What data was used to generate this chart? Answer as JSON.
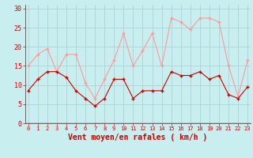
{
  "xlabel": "Vent moyen/en rafales ( km/h )",
  "background_color": "#c8eef0",
  "grid_color": "#aacccc",
  "x": [
    0,
    1,
    2,
    3,
    4,
    5,
    6,
    7,
    8,
    9,
    10,
    11,
    12,
    13,
    14,
    15,
    16,
    17,
    18,
    19,
    20,
    21,
    22,
    23
  ],
  "vent_moyen": [
    8.5,
    11.5,
    13.5,
    13.5,
    12.0,
    8.5,
    6.5,
    4.5,
    6.5,
    11.5,
    11.5,
    6.5,
    8.5,
    8.5,
    8.5,
    13.5,
    12.5,
    12.5,
    13.5,
    11.5,
    12.5,
    7.5,
    6.5,
    9.5
  ],
  "rafales": [
    15.0,
    18.0,
    19.5,
    13.5,
    18.0,
    18.0,
    10.5,
    6.5,
    11.5,
    16.5,
    23.5,
    15.0,
    19.0,
    23.5,
    15.0,
    27.5,
    26.5,
    24.5,
    27.5,
    27.5,
    26.5,
    15.0,
    7.0,
    16.5
  ],
  "color_moyen": "#cc0000",
  "color_rafales": "#ff9999",
  "ylim": [
    0,
    31
  ],
  "yticks": [
    0,
    5,
    10,
    15,
    20,
    25,
    30
  ],
  "xlim": [
    -0.3,
    23.3
  ],
  "tick_color": "#cc0000",
  "xlabel_fontsize": 7,
  "tick_fontsize": 5,
  "ytick_fontsize": 6
}
